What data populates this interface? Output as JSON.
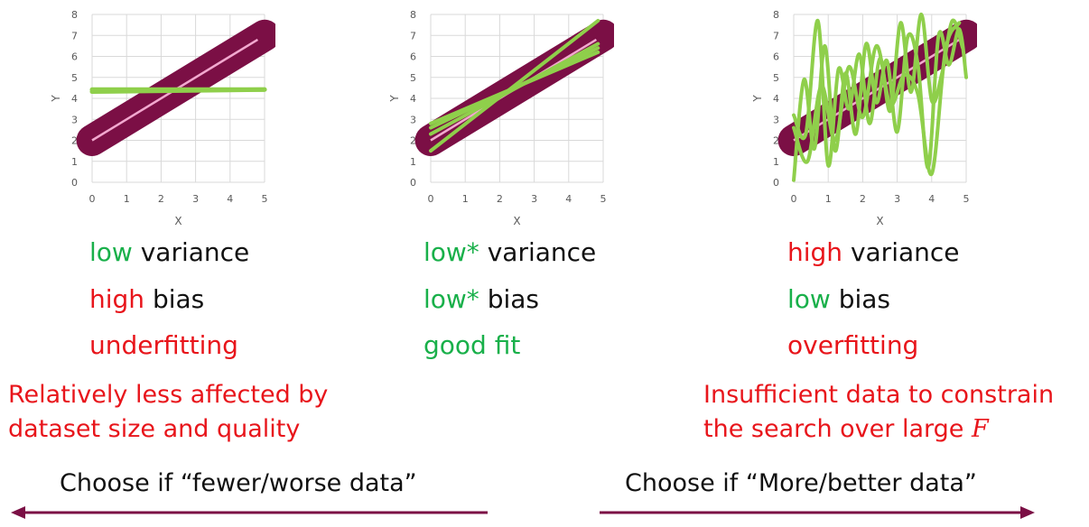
{
  "colors": {
    "band": "#7b0f45",
    "truth": "#f2a8cf",
    "fit": "#8fcf4b",
    "good": "#19b04a",
    "bad": "#e8151b",
    "arrow": "#7b0f45"
  },
  "chart_data": [
    {
      "type": "line",
      "xlabel": "X",
      "ylabel": "Y",
      "xlim": [
        0,
        5
      ],
      "ylim": [
        0,
        8
      ],
      "xticks": [
        "0",
        "1",
        "2",
        "3",
        "4",
        "5"
      ],
      "yticks": [
        "0",
        "1",
        "2",
        "3",
        "4",
        "5",
        "6",
        "7",
        "8"
      ],
      "grid": true,
      "band": {
        "x": [
          0,
          5
        ],
        "center": [
          2,
          7
        ],
        "halfwidth": 0.75
      },
      "truth": {
        "x": [
          0,
          4.8
        ],
        "y": [
          2,
          6.8
        ]
      },
      "fits": [
        {
          "x": [
            0,
            5
          ],
          "y": [
            4.42,
            4.42
          ]
        },
        {
          "x": [
            0,
            5
          ],
          "y": [
            4.32,
            4.42
          ]
        }
      ]
    },
    {
      "type": "line",
      "xlabel": "X",
      "ylabel": "Y",
      "xlim": [
        0,
        5
      ],
      "ylim": [
        0,
        8
      ],
      "xticks": [
        "0",
        "1",
        "2",
        "3",
        "4",
        "5"
      ],
      "yticks": [
        "0",
        "1",
        "2",
        "3",
        "4",
        "5",
        "6",
        "7",
        "8"
      ],
      "grid": true,
      "band": {
        "x": [
          0,
          5
        ],
        "center": [
          2,
          7
        ],
        "halfwidth": 0.75
      },
      "truth": {
        "x": [
          0,
          4.8
        ],
        "y": [
          2,
          6.8
        ]
      },
      "fits": [
        {
          "x": [
            0,
            4.85
          ],
          "y": [
            1.5,
            7.7
          ]
        },
        {
          "x": [
            0,
            4.85
          ],
          "y": [
            2.3,
            6.6
          ]
        },
        {
          "x": [
            0,
            4.85
          ],
          "y": [
            2.8,
            6.2
          ]
        },
        {
          "x": [
            0,
            4.85
          ],
          "y": [
            2.6,
            6.4
          ]
        }
      ]
    },
    {
      "type": "line",
      "xlabel": "X",
      "ylabel": "Y",
      "xlim": [
        0,
        5
      ],
      "ylim": [
        0,
        8
      ],
      "xticks": [
        "0",
        "1",
        "2",
        "3",
        "4",
        "5"
      ],
      "yticks": [
        "0",
        "1",
        "2",
        "3",
        "4",
        "5",
        "6",
        "7",
        "8"
      ],
      "grid": true,
      "band": {
        "x": [
          0,
          5
        ],
        "center": [
          2,
          7
        ],
        "halfwidth": 0.75
      },
      "truth": {
        "x": [
          0,
          4.8
        ],
        "y": [
          2,
          6.8
        ]
      },
      "fits": [
        {
          "x": [
            0,
            0.3,
            0.6,
            0.9,
            1.2,
            1.5,
            1.8,
            2.1,
            2.4,
            2.7,
            3.0,
            3.3,
            3.6,
            3.9,
            4.2,
            4.5,
            4.8,
            5.0
          ],
          "y": [
            0.1,
            4.9,
            1.6,
            6.5,
            1.5,
            5.2,
            2.3,
            6.6,
            3.8,
            5.8,
            2.4,
            6.9,
            5.6,
            0.7,
            7.0,
            5.6,
            7.3,
            5.0
          ]
        },
        {
          "x": [
            0,
            0.35,
            0.7,
            1.0,
            1.3,
            1.6,
            1.9,
            2.2,
            2.5,
            2.8,
            3.1,
            3.4,
            3.7,
            4.0,
            4.3,
            4.6,
            4.9
          ],
          "y": [
            3.2,
            2.3,
            7.7,
            0.8,
            5.4,
            3.5,
            6.1,
            2.8,
            5.9,
            3.4,
            7.6,
            4.3,
            8.0,
            3.9,
            5.2,
            7.7,
            6.4
          ]
        },
        {
          "x": [
            0,
            0.4,
            0.8,
            1.2,
            1.6,
            2.0,
            2.4,
            2.8,
            3.2,
            3.6,
            4.0,
            4.4,
            4.8
          ],
          "y": [
            2.6,
            1.0,
            4.6,
            2.0,
            5.5,
            3.1,
            6.5,
            3.7,
            5.1,
            4.2,
            0.4,
            6.3,
            7.6
          ]
        }
      ]
    }
  ],
  "columns": [
    {
      "line1": {
        "color_word": "low",
        "rest": " variance"
      },
      "line2": {
        "color_word": "high",
        "rest": " bias"
      },
      "line3": "underfitting"
    },
    {
      "line1": {
        "color_word": "low*",
        "rest": " variance"
      },
      "line2": {
        "color_word": "low*",
        "rest": " bias"
      },
      "line3": "good fit"
    },
    {
      "line1": {
        "color_word": "high",
        "rest": " variance"
      },
      "line2": {
        "color_word": "low",
        "rest": " bias"
      },
      "line3": "overfitting"
    }
  ],
  "notes": {
    "left_1": "Relatively less affected by",
    "left_2": "dataset size and quality",
    "right_1": "Insufficient data to constrain",
    "right_2": "the search over large ",
    "right_2_var": "F"
  },
  "choose": {
    "left": "Choose if “fewer/worse data”",
    "right": "Choose if “More/better data”"
  }
}
